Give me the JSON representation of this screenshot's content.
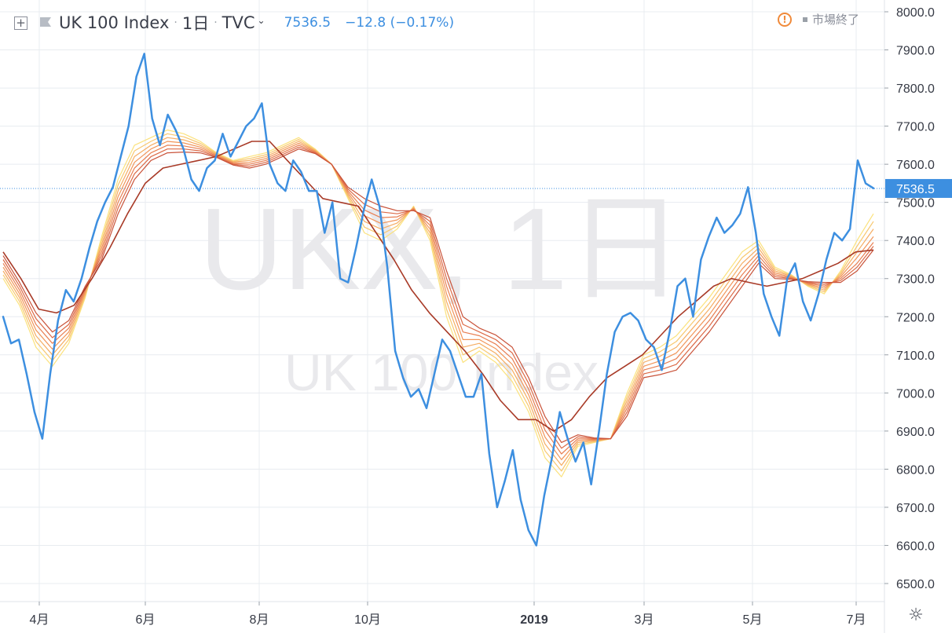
{
  "header": {
    "title": "UK 100 Index",
    "interval": "1日",
    "exchange": "TVC",
    "price": "7536.5",
    "change": "−12.8 (−0.17%)",
    "status": "市場終了"
  },
  "watermark": {
    "line1": "UKX, 1日",
    "line2": "UK 100 Index"
  },
  "colors": {
    "price_line": "#3d8fe0",
    "ribbon": [
      "#fbe27d",
      "#f8c86f",
      "#f5ad63",
      "#f19559",
      "#e87f52",
      "#dc6a47",
      "#c9533a",
      "#a83a27"
    ],
    "grid": "#e8ecf0",
    "axis_text": "#363a45",
    "label_bg": "#3d8fe0"
  },
  "icons": [
    "plus-box-icon",
    "flag-icon",
    "chevron-down-icon",
    "warning-icon",
    "gear-icon"
  ],
  "chart_data": {
    "type": "line",
    "x_ticks": [
      "4月",
      "6月",
      "8月",
      "10月",
      "2019",
      "3月",
      "5月",
      "7月"
    ],
    "y_ticks": [
      "8000.0",
      "7900.0",
      "7800.0",
      "7700.0",
      "7600.0",
      "7500.0",
      "7400.0",
      "7300.0",
      "7200.0",
      "7100.0",
      "7000.0",
      "6900.0",
      "6800.0",
      "6700.0",
      "6600.0",
      "6500.0"
    ],
    "ylim": [
      6450,
      8030
    ],
    "last_price": 7536.5,
    "last_price_label": "7536.5",
    "series": [
      {
        "name": "UK 100 Index",
        "values": [
          7200,
          7130,
          7140,
          7050,
          6950,
          6880,
          7050,
          7190,
          7270,
          7240,
          7300,
          7380,
          7450,
          7500,
          7540,
          7620,
          7700,
          7830,
          7890,
          7720,
          7650,
          7730,
          7690,
          7640,
          7560,
          7530,
          7590,
          7610,
          7680,
          7620,
          7660,
          7700,
          7720,
          7760,
          7600,
          7550,
          7530,
          7610,
          7580,
          7530,
          7530,
          7420,
          7500,
          7300,
          7290,
          7380,
          7480,
          7560,
          7490,
          7330,
          7110,
          7040,
          6990,
          7010,
          6960,
          7050,
          7140,
          7110,
          7050,
          6990,
          6990,
          7050,
          6840,
          6700,
          6770,
          6850,
          6720,
          6640,
          6600,
          6730,
          6830,
          6950,
          6880,
          6820,
          6870,
          6760,
          6900,
          7050,
          7160,
          7200,
          7210,
          7190,
          7140,
          7120,
          7060,
          7160,
          7280,
          7300,
          7200,
          7350,
          7410,
          7460,
          7420,
          7440,
          7470,
          7540,
          7420,
          7260,
          7200,
          7150,
          7300,
          7340,
          7240,
          7190,
          7260,
          7350,
          7420,
          7400,
          7430,
          7610,
          7550,
          7537
        ]
      },
      {
        "name": "",
        "values": [
          7300,
          7230,
          7120,
          7070,
          7130,
          7250,
          7410,
          7560,
          7650,
          7670,
          7690,
          7680,
          7660,
          7630,
          7610,
          7620,
          7630,
          7650,
          7670,
          7640,
          7600,
          7510,
          7420,
          7400,
          7430,
          7490,
          7400,
          7200,
          7080,
          7110,
          7080,
          7030,
          6950,
          6830,
          6780,
          6860,
          6870,
          6880,
          7000,
          7100,
          7120,
          7150,
          7200,
          7250,
          7310,
          7370,
          7400,
          7330,
          7310,
          7280,
          7260,
          7320,
          7400,
          7470
        ]
      },
      {
        "name": "",
        "values": [
          7310,
          7240,
          7135,
          7085,
          7140,
          7255,
          7400,
          7545,
          7635,
          7660,
          7680,
          7672,
          7655,
          7628,
          7608,
          7615,
          7625,
          7645,
          7665,
          7638,
          7600,
          7515,
          7435,
          7415,
          7438,
          7488,
          7410,
          7220,
          7100,
          7120,
          7092,
          7045,
          6965,
          6848,
          6795,
          6865,
          6872,
          6880,
          6990,
          7090,
          7108,
          7135,
          7185,
          7235,
          7295,
          7355,
          7390,
          7325,
          7308,
          7282,
          7265,
          7315,
          7385,
          7450
        ]
      },
      {
        "name": "",
        "values": [
          7320,
          7250,
          7150,
          7100,
          7150,
          7260,
          7390,
          7530,
          7620,
          7650,
          7670,
          7664,
          7650,
          7626,
          7606,
          7610,
          7620,
          7640,
          7660,
          7636,
          7600,
          7520,
          7450,
          7430,
          7446,
          7486,
          7420,
          7240,
          7120,
          7130,
          7104,
          7060,
          6980,
          6866,
          6810,
          6870,
          6874,
          6880,
          6980,
          7080,
          7096,
          7120,
          7170,
          7220,
          7280,
          7340,
          7380,
          7320,
          7306,
          7284,
          7270,
          7310,
          7370,
          7430
        ]
      },
      {
        "name": "",
        "values": [
          7330,
          7260,
          7165,
          7115,
          7160,
          7265,
          7380,
          7515,
          7605,
          7640,
          7660,
          7656,
          7645,
          7624,
          7604,
          7605,
          7615,
          7635,
          7655,
          7634,
          7600,
          7525,
          7465,
          7445,
          7454,
          7484,
          7430,
          7260,
          7140,
          7140,
          7116,
          7075,
          6995,
          6884,
          6825,
          6875,
          6876,
          6880,
          6970,
          7070,
          7084,
          7105,
          7155,
          7205,
          7265,
          7325,
          7370,
          7315,
          7304,
          7286,
          7275,
          7305,
          7355,
          7410
        ]
      },
      {
        "name": "",
        "values": [
          7340,
          7270,
          7180,
          7130,
          7170,
          7270,
          7370,
          7500,
          7590,
          7630,
          7650,
          7648,
          7640,
          7622,
          7602,
          7600,
          7610,
          7630,
          7650,
          7632,
          7600,
          7530,
          7480,
          7460,
          7462,
          7482,
          7440,
          7280,
          7160,
          7150,
          7128,
          7090,
          7010,
          6902,
          6840,
          6880,
          6878,
          6880,
          6960,
          7060,
          7072,
          7090,
          7140,
          7190,
          7250,
          7310,
          7360,
          7310,
          7302,
          7288,
          7280,
          7300,
          7340,
          7395
        ]
      },
      {
        "name": "",
        "values": [
          7350,
          7280,
          7195,
          7145,
          7180,
          7275,
          7360,
          7485,
          7575,
          7620,
          7640,
          7640,
          7635,
          7620,
          7600,
          7595,
          7605,
          7625,
          7645,
          7630,
          7600,
          7535,
          7495,
          7475,
          7470,
          7480,
          7450,
          7300,
          7180,
          7160,
          7140,
          7105,
          7025,
          6920,
          6855,
          6885,
          6880,
          6880,
          6950,
          7050,
          7060,
          7075,
          7125,
          7175,
          7235,
          7295,
          7350,
          7305,
          7300,
          7290,
          7285,
          7295,
          7330,
          7385
        ]
      },
      {
        "name": "",
        "values": [
          7360,
          7290,
          7210,
          7160,
          7190,
          7280,
          7350,
          7470,
          7560,
          7610,
          7630,
          7632,
          7630,
          7618,
          7598,
          7590,
          7600,
          7620,
          7640,
          7628,
          7600,
          7540,
          7510,
          7490,
          7478,
          7478,
          7460,
          7320,
          7200,
          7170,
          7152,
          7120,
          7040,
          6938,
          6870,
          6890,
          6882,
          6880,
          6940,
          7040,
          7048,
          7060,
          7110,
          7160,
          7220,
          7280,
          7340,
          7300,
          7298,
          7292,
          7290,
          7290,
          7320,
          7375
        ]
      },
      {
        "name": "",
        "values": [
          7370,
          7300,
          7220,
          7210,
          7230,
          7300,
          7380,
          7470,
          7550,
          7590,
          7600,
          7610,
          7620,
          7640,
          7660,
          7660,
          7610,
          7560,
          7510,
          7500,
          7490,
          7420,
          7350,
          7270,
          7210,
          7160,
          7110,
          7050,
          6980,
          6930,
          6930,
          6900,
          6930,
          6990,
          7040,
          7070,
          7100,
          7150,
          7200,
          7240,
          7280,
          7300,
          7290,
          7280,
          7290,
          7300,
          7320,
          7340,
          7370,
          7375
        ]
      }
    ]
  }
}
